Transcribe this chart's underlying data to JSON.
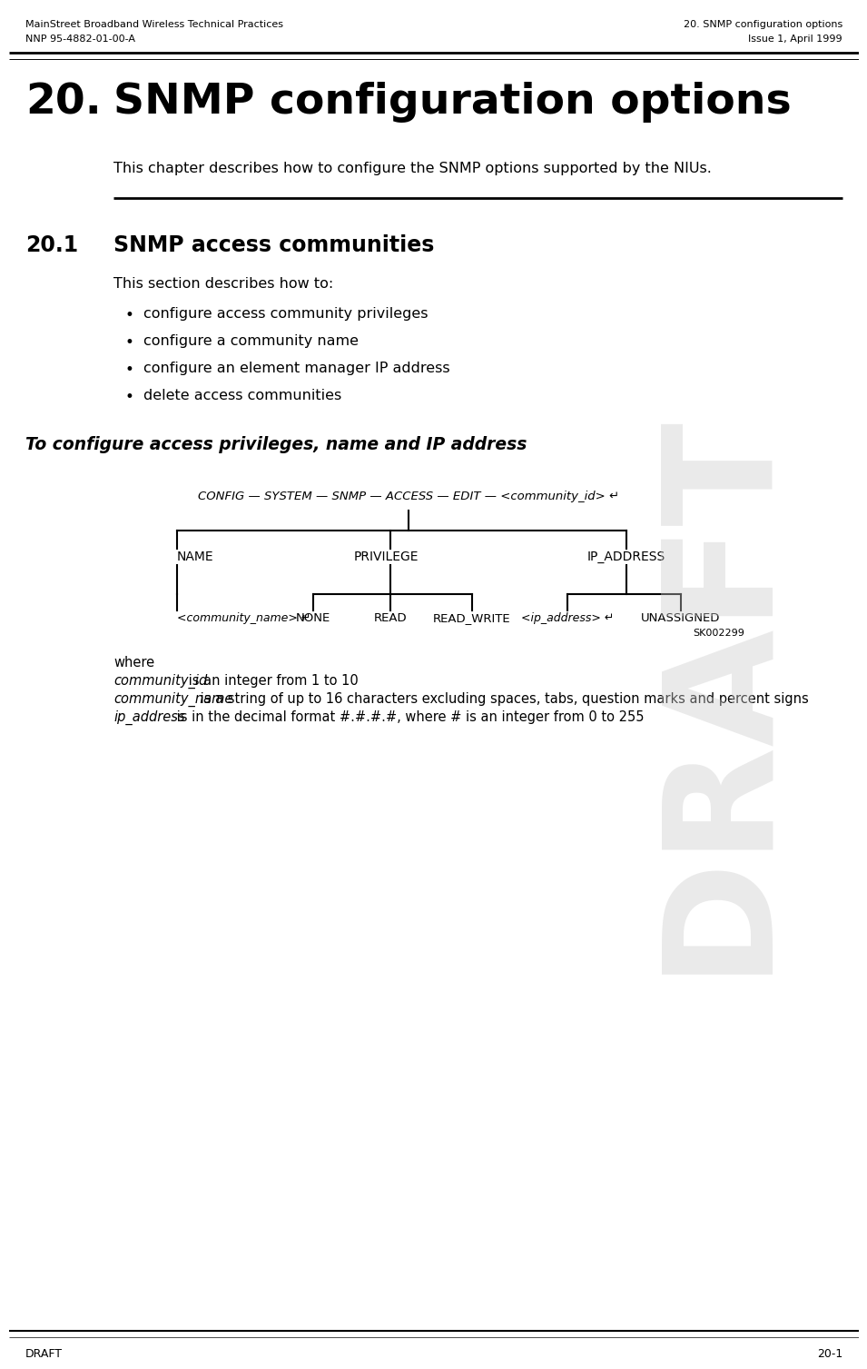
{
  "bg_color": "#ffffff",
  "header_left_line1": "MainStreet Broadband Wireless Technical Practices",
  "header_left_line2": "NNP 95-4882-01-00-A",
  "header_right_line1": "20. SNMP configuration options",
  "header_right_line2": "Issue 1, April 1999",
  "chapter_number": "20.",
  "chapter_title": "SNMP configuration options",
  "chapter_intro": "This chapter describes how to configure the SNMP options supported by the NIUs.",
  "section_number": "20.1",
  "section_title": "SNMP access communities",
  "section_intro": "This section describes how to:",
  "bullets": [
    "configure access community privileges",
    "configure a community name",
    "configure an element manager IP address",
    "delete access communities"
  ],
  "procedure_title": "To configure access privileges, name and IP address",
  "cmd_line": "CONFIG — SYSTEM — SNMP — ACCESS — EDIT — <community_id> ↵",
  "diagram_ref": "SK002299",
  "where_text": "where",
  "param1_name": "community_id",
  "param1_desc": " is an integer from 1 to 10",
  "param2_name": "community_name",
  "param2_desc": " is a string of up to 16 characters excluding spaces, tabs, question marks and percent signs",
  "param3_name": "ip_address",
  "param3_desc": " is in the decimal format #.#.#.#, where # is an integer from 0 to 255",
  "page_number": "20-1",
  "draft_watermark": "DRAFT",
  "footer_draft": "DRAFT"
}
